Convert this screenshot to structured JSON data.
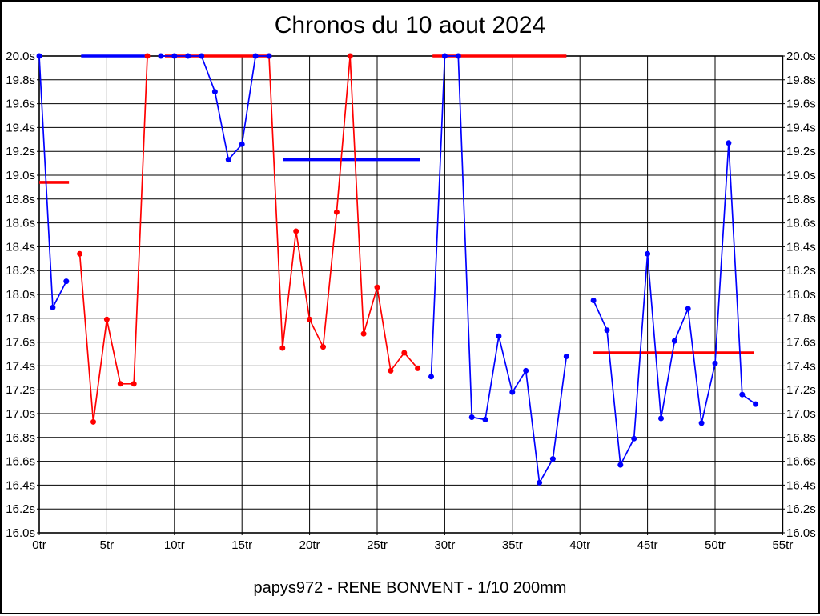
{
  "chart_data": {
    "type": "line",
    "title": "Chronos du 10 aout 2024",
    "subtitle": "papys972 - RENE BONVENT - 1/10 200mm",
    "grid": true,
    "legend": "none",
    "colors": {
      "blue_series": "#0000ff",
      "red_series": "#ff0000",
      "grid": "#000000",
      "background": "#ffffff"
    },
    "x_axis": {
      "min": 0,
      "max": 55,
      "tick_step": 5,
      "unit_suffix": "tr",
      "ticks": [
        {
          "value": 0,
          "label": "0tr"
        },
        {
          "value": 5,
          "label": "5tr"
        },
        {
          "value": 10,
          "label": "10tr"
        },
        {
          "value": 15,
          "label": "15tr"
        },
        {
          "value": 20,
          "label": "20tr"
        },
        {
          "value": 25,
          "label": "25tr"
        },
        {
          "value": 30,
          "label": "30tr"
        },
        {
          "value": 35,
          "label": "35tr"
        },
        {
          "value": 40,
          "label": "40tr"
        },
        {
          "value": 45,
          "label": "45tr"
        },
        {
          "value": 50,
          "label": "50tr"
        },
        {
          "value": 55,
          "label": "55tr"
        }
      ]
    },
    "y_axis": {
      "min": 16.0,
      "max": 20.0,
      "tick_step": 0.2,
      "unit_suffix": "s",
      "sides": [
        "left",
        "right"
      ],
      "ticks": [
        {
          "value": 20.0,
          "label": "20.0s"
        },
        {
          "value": 19.8,
          "label": "19.8s"
        },
        {
          "value": 19.6,
          "label": "19.6s"
        },
        {
          "value": 19.4,
          "label": "19.4s"
        },
        {
          "value": 19.2,
          "label": "19.2s"
        },
        {
          "value": 19.0,
          "label": "19.0s"
        },
        {
          "value": 18.8,
          "label": "18.8s"
        },
        {
          "value": 18.6,
          "label": "18.6s"
        },
        {
          "value": 18.4,
          "label": "18.4s"
        },
        {
          "value": 18.2,
          "label": "18.2s"
        },
        {
          "value": 18.0,
          "label": "18.0s"
        },
        {
          "value": 17.8,
          "label": "17.8s"
        },
        {
          "value": 17.6,
          "label": "17.6s"
        },
        {
          "value": 17.4,
          "label": "17.4s"
        },
        {
          "value": 17.2,
          "label": "17.2s"
        },
        {
          "value": 17.0,
          "label": "17.0s"
        },
        {
          "value": 16.8,
          "label": "16.8s"
        },
        {
          "value": 16.6,
          "label": "16.6s"
        },
        {
          "value": 16.4,
          "label": "16.4s"
        },
        {
          "value": 16.2,
          "label": "16.2s"
        },
        {
          "value": 16.0,
          "label": "16.0s"
        }
      ]
    },
    "series": [
      {
        "name": "red-series",
        "color": "#ff0000",
        "marker": "circle",
        "segments": [
          [
            [
              3,
              18.34
            ],
            [
              4,
              16.93
            ],
            [
              5,
              17.79
            ],
            [
              6,
              17.25
            ],
            [
              7,
              17.25
            ],
            [
              8,
              20.0
            ]
          ],
          [
            [
              17,
              20.0
            ],
            [
              18,
              17.55
            ],
            [
              19,
              18.53
            ],
            [
              20,
              17.79
            ],
            [
              21,
              17.56
            ],
            [
              22,
              18.69
            ],
            [
              23,
              20.0
            ],
            [
              24,
              17.67
            ],
            [
              25,
              18.06
            ],
            [
              26,
              17.36
            ],
            [
              27,
              17.51
            ],
            [
              28,
              17.38
            ]
          ]
        ]
      },
      {
        "name": "blue-series",
        "color": "#0000ff",
        "marker": "circle",
        "segments": [
          [
            [
              0,
              20.0
            ],
            [
              1,
              17.89
            ],
            [
              2,
              18.11
            ]
          ],
          [
            [
              9,
              20.0
            ],
            [
              10,
              20.0
            ],
            [
              11,
              20.0
            ],
            [
              12,
              20.0
            ],
            [
              13,
              19.7
            ],
            [
              14,
              19.13
            ],
            [
              15,
              19.26
            ],
            [
              16,
              20.0
            ],
            [
              17,
              20.0
            ]
          ],
          [
            [
              29,
              17.31
            ],
            [
              30,
              20.0
            ],
            [
              31,
              20.0
            ],
            [
              32,
              16.97
            ],
            [
              33,
              16.95
            ],
            [
              34,
              17.65
            ],
            [
              35,
              17.18
            ],
            [
              36,
              17.36
            ],
            [
              37,
              16.42
            ],
            [
              38,
              16.62
            ],
            [
              39,
              17.48
            ]
          ],
          [
            [
              41,
              17.95
            ],
            [
              42,
              17.7
            ],
            [
              43,
              16.57
            ],
            [
              44,
              16.79
            ],
            [
              45,
              18.34
            ],
            [
              46,
              16.96
            ],
            [
              47,
              17.61
            ],
            [
              48,
              17.88
            ],
            [
              49,
              16.92
            ],
            [
              50,
              17.42
            ],
            [
              51,
              19.27
            ],
            [
              52,
              17.16
            ],
            [
              53,
              17.08
            ]
          ]
        ]
      }
    ],
    "average_lines": [
      {
        "color": "#ff0000",
        "value": 18.94,
        "lap_start": 0,
        "lap_end": 2.2
      },
      {
        "color": "#0000ff",
        "value": 20.0,
        "lap_start": 3.1,
        "lap_end": 8.1
      },
      {
        "color": "#ff0000",
        "value": 20.0,
        "lap_start": 9.3,
        "lap_end": 17.15
      },
      {
        "color": "#0000ff",
        "value": 19.13,
        "lap_start": 18.05,
        "lap_end": 28.15
      },
      {
        "color": "#ff0000",
        "value": 20.0,
        "lap_start": 29.1,
        "lap_end": 39.0
      },
      {
        "color": "#ff0000",
        "value": 17.51,
        "lap_start": 41.0,
        "lap_end": 52.9
      }
    ]
  }
}
